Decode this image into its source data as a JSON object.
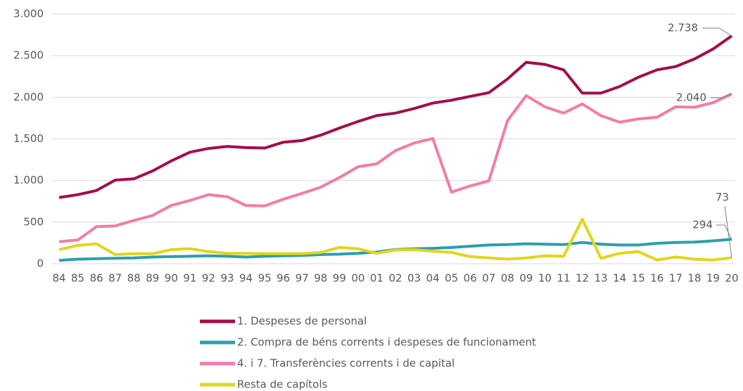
{
  "chart_data": {
    "type": "line",
    "categories": [
      "84",
      "85",
      "86",
      "87",
      "88",
      "89",
      "90",
      "91",
      "92",
      "93",
      "94",
      "95",
      "96",
      "97",
      "98",
      "99",
      "00",
      "01",
      "02",
      "03",
      "04",
      "05",
      "06",
      "07",
      "08",
      "09",
      "10",
      "11",
      "12",
      "13",
      "14",
      "15",
      "16",
      "17",
      "18",
      "19",
      "20"
    ],
    "series": [
      {
        "name": "1. Despeses de personal",
        "color": "#a50d4a",
        "values": [
          795,
          830,
          880,
          1005,
          1020,
          1115,
          1235,
          1340,
          1385,
          1410,
          1395,
          1390,
          1460,
          1480,
          1545,
          1630,
          1710,
          1780,
          1810,
          1865,
          1930,
          1965,
          2010,
          2055,
          2220,
          2420,
          2395,
          2330,
          2050,
          2050,
          2130,
          2240,
          2330,
          2370,
          2460,
          2580,
          2738
        ],
        "value_labels": [
          null,
          null,
          null,
          null,
          null,
          null,
          null,
          null,
          null,
          null,
          null,
          null,
          null,
          null,
          null,
          null,
          null,
          null,
          null,
          null,
          null,
          null,
          null,
          null,
          null,
          null,
          null,
          null,
          null,
          null,
          null,
          null,
          null,
          null,
          null,
          null,
          "2.738"
        ]
      },
      {
        "name": "2. Compra de béns corrents i despeses de funcionament",
        "color": "#2a9fb0",
        "values": [
          40,
          55,
          60,
          65,
          70,
          80,
          85,
          90,
          95,
          90,
          80,
          90,
          95,
          100,
          110,
          115,
          125,
          140,
          170,
          180,
          185,
          195,
          210,
          225,
          230,
          240,
          235,
          230,
          255,
          235,
          225,
          225,
          245,
          255,
          260,
          275,
          294
        ],
        "value_labels": [
          null,
          null,
          null,
          null,
          null,
          null,
          null,
          null,
          null,
          null,
          null,
          null,
          null,
          null,
          null,
          null,
          null,
          null,
          null,
          null,
          null,
          null,
          null,
          null,
          null,
          null,
          null,
          null,
          null,
          null,
          null,
          null,
          null,
          null,
          null,
          null,
          "294"
        ]
      },
      {
        "name": "4. i 7. Transferències corrents i de capital",
        "color": "#f47ba8",
        "values": [
          265,
          285,
          445,
          455,
          520,
          580,
          700,
          760,
          830,
          805,
          700,
          695,
          775,
          845,
          920,
          1035,
          1165,
          1200,
          1360,
          1450,
          1505,
          860,
          935,
          995,
          1720,
          2020,
          1885,
          1810,
          1920,
          1780,
          1700,
          1740,
          1760,
          1885,
          1880,
          1935,
          2040
        ],
        "value_labels": [
          null,
          null,
          null,
          null,
          null,
          null,
          null,
          null,
          null,
          null,
          null,
          null,
          null,
          null,
          null,
          null,
          null,
          null,
          null,
          null,
          null,
          null,
          null,
          null,
          null,
          null,
          null,
          null,
          null,
          null,
          null,
          null,
          null,
          null,
          null,
          null,
          "2.040"
        ]
      },
      {
        "name": "Resta de capítols",
        "color": "#e0d61a",
        "values": [
          170,
          220,
          240,
          110,
          120,
          120,
          170,
          180,
          145,
          125,
          125,
          120,
          120,
          120,
          135,
          195,
          180,
          125,
          165,
          170,
          150,
          135,
          85,
          70,
          55,
          70,
          95,
          90,
          535,
          65,
          125,
          145,
          45,
          80,
          55,
          45,
          73
        ],
        "value_labels": [
          null,
          null,
          null,
          null,
          null,
          null,
          null,
          null,
          null,
          null,
          null,
          null,
          null,
          null,
          null,
          null,
          null,
          null,
          null,
          null,
          null,
          null,
          null,
          null,
          null,
          null,
          null,
          null,
          null,
          null,
          null,
          null,
          null,
          null,
          null,
          null,
          "73"
        ]
      }
    ],
    "ylim": [
      0,
      3000
    ],
    "yticks": [
      0,
      500,
      {
        "value": 1000,
        "label": "1.000"
      },
      {
        "value": 1500,
        "label": "1.500"
      },
      {
        "value": 2000,
        "label": "2.000"
      },
      {
        "value": 2500,
        "label": "2.500"
      },
      {
        "value": 3000,
        "label": "3.000"
      }
    ],
    "grid": true
  }
}
